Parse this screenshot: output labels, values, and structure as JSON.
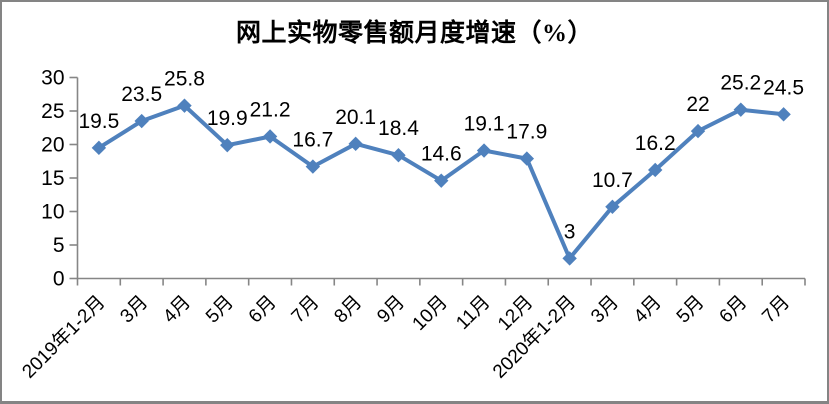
{
  "chart_data": {
    "type": "line",
    "title": "网上实物零售额月度增速（%）",
    "categories": [
      "2019年1-2月",
      "3月",
      "4月",
      "5月",
      "6月",
      "7月",
      "8月",
      "9月",
      "10月",
      "11月",
      "12月",
      "2020年1-2月",
      "3月",
      "4月",
      "5月",
      "6月",
      "7月"
    ],
    "values": [
      19.5,
      23.5,
      25.8,
      19.9,
      21.2,
      16.7,
      20.1,
      18.4,
      14.6,
      19.1,
      17.9,
      3,
      10.7,
      16.2,
      22,
      25.2,
      24.5
    ],
    "xlabel": "",
    "ylabel": "",
    "ylim": [
      0,
      30
    ],
    "yticks": [
      0,
      5,
      10,
      15,
      20,
      25,
      30
    ],
    "grid": false,
    "legend": "none",
    "data_labels": "above",
    "marker": "diamond",
    "series_color": "#4f81bd",
    "axis_color": "#868686",
    "text_color": "#000000",
    "frame_border_color": "#848484",
    "background_color": "#ffffff"
  }
}
